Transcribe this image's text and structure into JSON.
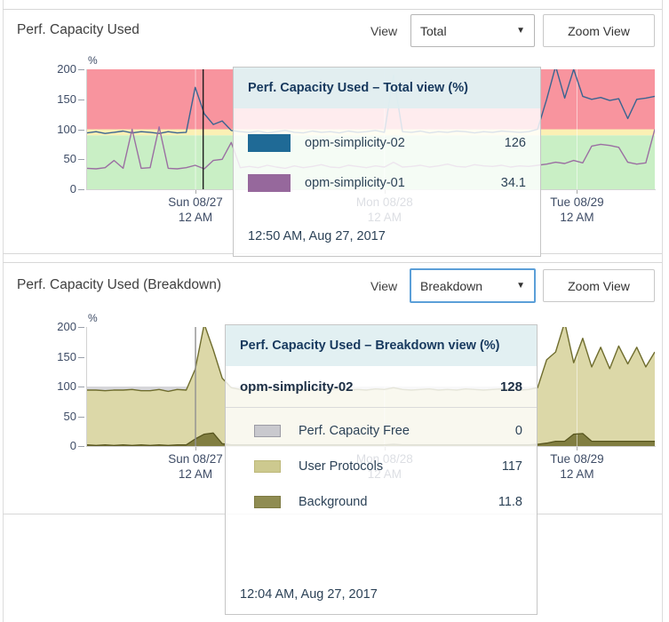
{
  "panels": [
    {
      "title": "Perf. Capacity Used",
      "view_label": "View",
      "view_value": "Total",
      "zoom_button": "Zoom View"
    },
    {
      "title": "Perf. Capacity Used (Breakdown)",
      "view_label": "View",
      "view_value": "Breakdown",
      "zoom_button": "Zoom View"
    }
  ],
  "tooltips": [
    {
      "header": "Perf. Capacity Used – Total view (%)",
      "rows": [
        {
          "label": "opm-simplicity-02",
          "value": "126",
          "color": "#1f6a96",
          "border": "#1f6a96"
        },
        {
          "label": "opm-simplicity-01",
          "value": "34.1",
          "color": "#96689c",
          "border": "#96689c"
        }
      ],
      "footer": "12:50 AM, Aug 27, 2017"
    },
    {
      "header": "Perf. Capacity Used – Breakdown view (%)",
      "total_row": {
        "label": "opm-simplicity-02",
        "value": "128"
      },
      "rows": [
        {
          "label": "Perf. Capacity Free",
          "value": "0",
          "color": "#c9c9ce",
          "border": "#9b9ba4"
        },
        {
          "label": "User Protocols",
          "value": "117",
          "color": "#cdc98f",
          "border": "#bdb879"
        },
        {
          "label": "Background",
          "value": "11.8",
          "color": "#8f8c52",
          "border": "#7d7a42"
        }
      ],
      "footer": "12:04 AM, Aug 27, 2017"
    }
  ],
  "chart_data": [
    {
      "type": "line",
      "title": "Perf. Capacity Used - Total view",
      "ylabel": "%",
      "ylim": [
        0,
        200
      ],
      "yticks": [
        0,
        50,
        100,
        150,
        200
      ],
      "x_ticks": [
        {
          "pos": 0.191,
          "line1": "Sun 08/27",
          "line2": "12 AM"
        },
        {
          "pos": 0.524,
          "line1": "Mon 08/28",
          "line2": "12 AM"
        },
        {
          "pos": 0.863,
          "line1": "Tue 08/29",
          "line2": "12 AM"
        }
      ],
      "bands": [
        {
          "from": 0,
          "to": 90,
          "color": "#c9efc5"
        },
        {
          "from": 90,
          "to": 100,
          "color": "#fbf0b4"
        },
        {
          "from": 100,
          "to": 200,
          "color": "#f8949e"
        }
      ],
      "gridline_color": "rgba(255,255,255,0.55)",
      "cursor": {
        "pos": 0.2045,
        "color": "#1c1c1c",
        "time": "12:50 AM, Aug 27, 2017"
      },
      "series": [
        {
          "name": "opm-simplicity-02",
          "color": "#3a6591",
          "values": [
            94,
            96,
            93,
            95,
            97,
            94,
            96,
            95,
            93,
            96,
            94,
            95,
            170,
            126,
            108,
            114,
            98,
            96,
            95,
            97,
            94,
            96,
            98,
            95,
            94,
            97,
            95,
            96,
            94,
            97,
            95,
            96,
            98,
            95,
            190,
            96,
            95,
            97,
            94,
            96,
            95,
            97,
            96,
            94,
            96,
            95,
            97,
            96,
            95,
            96,
            100,
            150,
            205,
            152,
            200,
            155,
            150,
            153,
            148,
            151,
            118,
            150,
            152,
            155
          ]
        },
        {
          "name": "opm-simplicity-01",
          "color": "#9b6fa2",
          "values": [
            35,
            34,
            36,
            48,
            35,
            100,
            35,
            36,
            104,
            35,
            34,
            36,
            40,
            34.1,
            48,
            50,
            78,
            36,
            38,
            36,
            40,
            37,
            35,
            39,
            36,
            38,
            41,
            37,
            36,
            40,
            38,
            36,
            39,
            37,
            45,
            37,
            38,
            40,
            37,
            39,
            42,
            38,
            37,
            41,
            39,
            38,
            40,
            37,
            39,
            38,
            40,
            42,
            45,
            43,
            48,
            44,
            72,
            75,
            73,
            70,
            45,
            42,
            44,
            100
          ]
        }
      ]
    },
    {
      "type": "area",
      "title": "Perf. Capacity Used - Breakdown view",
      "ylabel": "%",
      "ylim": [
        0,
        200
      ],
      "yticks": [
        0,
        50,
        100,
        150,
        200
      ],
      "x_ticks": [
        {
          "pos": 0.191,
          "line1": "Sun 08/27",
          "line2": "12 AM"
        },
        {
          "pos": 0.524,
          "line1": "Mon 08/28",
          "line2": "12 AM"
        },
        {
          "pos": 0.863,
          "line1": "Tue 08/29",
          "line2": "12 AM"
        }
      ],
      "free_band": {
        "level": 100,
        "color": "#d6d6da"
      },
      "gridline_color": "rgba(255,255,255,0.55)",
      "cursor": {
        "pos": 0.191,
        "color": "#909090",
        "time": "12:04 AM, Aug 27, 2017"
      },
      "series": [
        {
          "name": "User Protocols",
          "fill": "#dcd8a8",
          "stroke": "#6f6d2e",
          "values": [
            92,
            93,
            91,
            93,
            92,
            94,
            91,
            92,
            93,
            91,
            93,
            92,
            117,
            185,
            140,
            110,
            96,
            93,
            92,
            94,
            93,
            92,
            93,
            94,
            92,
            93,
            92,
            93,
            94,
            92,
            93,
            92,
            94,
            93,
            95,
            93,
            92,
            93,
            94,
            92,
            93,
            92,
            94,
            93,
            92,
            93,
            94,
            93,
            92,
            93,
            95,
            140,
            150,
            200,
            120,
            160,
            125,
            158,
            122,
            160,
            130,
            158,
            125,
            150
          ]
        },
        {
          "name": "Background",
          "fill": "#817e41",
          "stroke": "#57551f",
          "values": [
            2,
            1,
            2,
            1,
            2,
            1,
            2,
            1,
            2,
            1,
            2,
            2,
            12,
            20,
            22,
            4,
            2,
            2,
            2,
            2,
            2,
            2,
            2,
            2,
            2,
            2,
            2,
            2,
            2,
            2,
            2,
            2,
            2,
            2,
            3,
            2,
            2,
            2,
            2,
            2,
            2,
            2,
            2,
            2,
            2,
            2,
            2,
            2,
            2,
            2,
            3,
            5,
            8,
            8,
            20,
            21,
            8,
            8,
            8,
            8,
            8,
            8,
            8,
            8
          ]
        }
      ]
    }
  ],
  "theme": {
    "accent_blue": "#5b9fd8",
    "panel_border": "#d7d7d7",
    "axis_text": "#3e4c66",
    "tooltip_header_bg": "#e2eff1",
    "tooltip_text": "#2c4257"
  }
}
